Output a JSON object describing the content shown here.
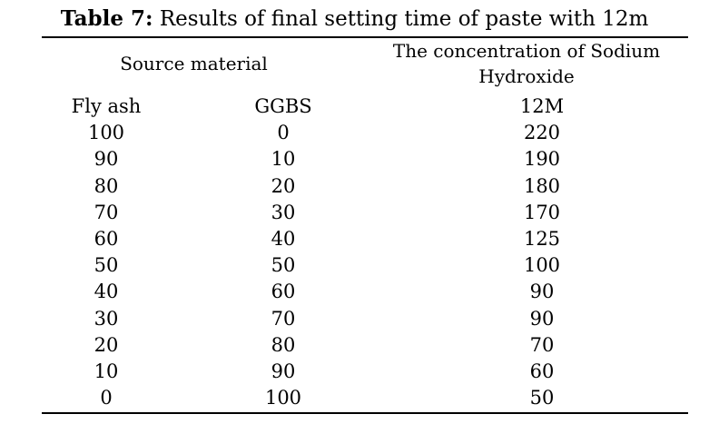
{
  "caption": {
    "label": "Table 7:",
    "text": "Results of final setting time of paste with 12m"
  },
  "headers": {
    "source_material": "Source material",
    "concentration_line1": "The concentration of Sodium",
    "concentration_line2": "Hydroxide"
  },
  "columns": [
    "Fly ash",
    "GGBS",
    "12M"
  ],
  "rows": [
    [
      "100",
      "0",
      "220"
    ],
    [
      "90",
      "10",
      "190"
    ],
    [
      "80",
      "20",
      "180"
    ],
    [
      "70",
      "30",
      "170"
    ],
    [
      "60",
      "40",
      "125"
    ],
    [
      "50",
      "50",
      "100"
    ],
    [
      "40",
      "60",
      "90"
    ],
    [
      "30",
      "70",
      "90"
    ],
    [
      "20",
      "80",
      "70"
    ],
    [
      "10",
      "90",
      "60"
    ],
    [
      "0",
      "100",
      "50"
    ]
  ]
}
